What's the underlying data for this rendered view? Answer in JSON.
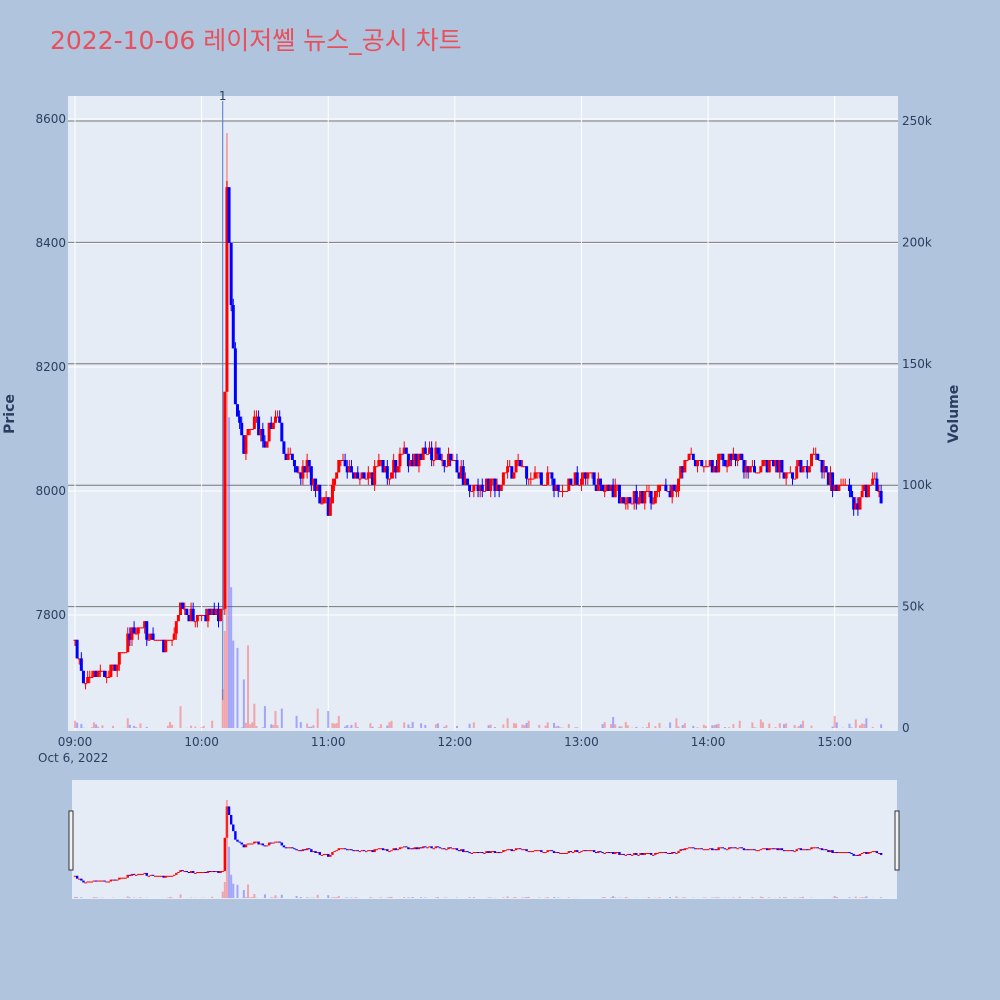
{
  "title": "2022-10-06 레이저쎌 뉴스_공시 차트",
  "colors": {
    "up": "#ff0000",
    "down": "#0000ff",
    "title": "#e8505b",
    "plot_bg": "#e5ecf6",
    "page_bg": "#b0c4de"
  },
  "chart_data": {
    "type": "candlestick",
    "title": "2022-10-06 레이저쎌 뉴스_공시 차트",
    "date_label": "Oct 6, 2022",
    "x_ticks": [
      "09:00",
      "10:00",
      "11:00",
      "12:00",
      "13:00",
      "14:00",
      "15:00"
    ],
    "x_range": [
      "09:00",
      "15:30"
    ],
    "y_price": {
      "label": "Price",
      "range": [
        7620,
        8630
      ],
      "ticks": [
        7800,
        8000,
        8200,
        8400,
        8600
      ]
    },
    "y_volume": {
      "label": "Volume",
      "range": [
        0,
        260000
      ],
      "ticks": [
        0,
        50000,
        100000,
        150000,
        200000,
        250000
      ],
      "tick_labels": [
        "0",
        "50k",
        "100k",
        "150k",
        "200k",
        "250k"
      ]
    },
    "annotation": {
      "text": "1",
      "time": "10:10"
    },
    "anchor_points": [
      {
        "t": "09:00",
        "p": 7760
      },
      {
        "t": "09:05",
        "p": 7680
      },
      {
        "t": "09:10",
        "p": 7710
      },
      {
        "t": "09:15",
        "p": 7700
      },
      {
        "t": "09:20",
        "p": 7730
      },
      {
        "t": "09:25",
        "p": 7760
      },
      {
        "t": "09:30",
        "p": 7790
      },
      {
        "t": "09:35",
        "p": 7770
      },
      {
        "t": "09:40",
        "p": 7750
      },
      {
        "t": "09:45",
        "p": 7760
      },
      {
        "t": "09:50",
        "p": 7820
      },
      {
        "t": "09:55",
        "p": 7800
      },
      {
        "t": "10:00",
        "p": 7790
      },
      {
        "t": "10:05",
        "p": 7810
      },
      {
        "t": "10:08",
        "p": 7790
      },
      {
        "t": "10:10",
        "p": 7800
      },
      {
        "t": "10:12",
        "p": 8500
      },
      {
        "t": "10:14",
        "p": 8300
      },
      {
        "t": "10:16",
        "p": 8150
      },
      {
        "t": "10:20",
        "p": 8070
      },
      {
        "t": "10:25",
        "p": 8120
      },
      {
        "t": "10:30",
        "p": 8080
      },
      {
        "t": "10:35",
        "p": 8120
      },
      {
        "t": "10:40",
        "p": 8060
      },
      {
        "t": "10:45",
        "p": 8030
      },
      {
        "t": "10:50",
        "p": 8040
      },
      {
        "t": "10:55",
        "p": 8000
      },
      {
        "t": "11:00",
        "p": 7970
      },
      {
        "t": "11:05",
        "p": 8040
      },
      {
        "t": "11:10",
        "p": 8040
      },
      {
        "t": "11:15",
        "p": 8020
      },
      {
        "t": "11:20",
        "p": 8020
      },
      {
        "t": "11:25",
        "p": 8040
      },
      {
        "t": "11:30",
        "p": 8030
      },
      {
        "t": "11:35",
        "p": 8060
      },
      {
        "t": "11:40",
        "p": 8050
      },
      {
        "t": "11:45",
        "p": 8060
      },
      {
        "t": "11:50",
        "p": 8060
      },
      {
        "t": "11:55",
        "p": 8050
      },
      {
        "t": "12:00",
        "p": 8040
      },
      {
        "t": "12:10",
        "p": 8000
      },
      {
        "t": "12:20",
        "p": 8010
      },
      {
        "t": "12:30",
        "p": 8040
      },
      {
        "t": "12:40",
        "p": 8020
      },
      {
        "t": "12:50",
        "p": 8010
      },
      {
        "t": "13:00",
        "p": 8020
      },
      {
        "t": "13:10",
        "p": 8010
      },
      {
        "t": "13:20",
        "p": 7990
      },
      {
        "t": "13:30",
        "p": 7990
      },
      {
        "t": "13:40",
        "p": 8000
      },
      {
        "t": "13:45",
        "p": 8010
      },
      {
        "t": "13:50",
        "p": 8060
      },
      {
        "t": "14:00",
        "p": 8040
      },
      {
        "t": "14:10",
        "p": 8050
      },
      {
        "t": "14:20",
        "p": 8040
      },
      {
        "t": "14:30",
        "p": 8040
      },
      {
        "t": "14:40",
        "p": 8030
      },
      {
        "t": "14:50",
        "p": 8050
      },
      {
        "t": "15:00",
        "p": 8010
      },
      {
        "t": "15:05",
        "p": 8000
      },
      {
        "t": "15:10",
        "p": 7980
      },
      {
        "t": "15:15",
        "p": 8000
      },
      {
        "t": "15:20",
        "p": 8010
      },
      {
        "t": "15:22",
        "p": 7990
      }
    ],
    "volume_spikes": [
      {
        "t": "09:00",
        "v": 3000
      },
      {
        "t": "09:25",
        "v": 4000
      },
      {
        "t": "09:45",
        "v": 2500
      },
      {
        "t": "09:50",
        "v": 9000
      },
      {
        "t": "10:05",
        "v": 3000
      },
      {
        "t": "10:10",
        "v": 16000
      },
      {
        "t": "10:11",
        "v": 40000
      },
      {
        "t": "10:12",
        "v": 245000
      },
      {
        "t": "10:13",
        "v": 128000
      },
      {
        "t": "10:14",
        "v": 58000
      },
      {
        "t": "10:15",
        "v": 36000
      },
      {
        "t": "10:17",
        "v": 33000
      },
      {
        "t": "10:20",
        "v": 20000
      },
      {
        "t": "10:22",
        "v": 34000
      },
      {
        "t": "10:25",
        "v": 10000
      },
      {
        "t": "10:30",
        "v": 9000
      },
      {
        "t": "10:35",
        "v": 7000
      },
      {
        "t": "10:38",
        "v": 8000
      },
      {
        "t": "10:45",
        "v": 5000
      },
      {
        "t": "10:55",
        "v": 8000
      },
      {
        "t": "11:00",
        "v": 7000
      },
      {
        "t": "11:05",
        "v": 5000
      },
      {
        "t": "11:30",
        "v": 3000
      },
      {
        "t": "11:40",
        "v": 2500
      },
      {
        "t": "12:25",
        "v": 4000
      },
      {
        "t": "12:35",
        "v": 3000
      },
      {
        "t": "13:15",
        "v": 4500
      },
      {
        "t": "13:45",
        "v": 4000
      },
      {
        "t": "14:15",
        "v": 3000
      },
      {
        "t": "14:25",
        "v": 3500
      },
      {
        "t": "14:45",
        "v": 3000
      },
      {
        "t": "15:00",
        "v": 5000
      },
      {
        "t": "15:10",
        "v": 3500
      },
      {
        "t": "15:15",
        "v": 4000
      },
      {
        "t": "15:30",
        "v": 6000
      }
    ]
  }
}
